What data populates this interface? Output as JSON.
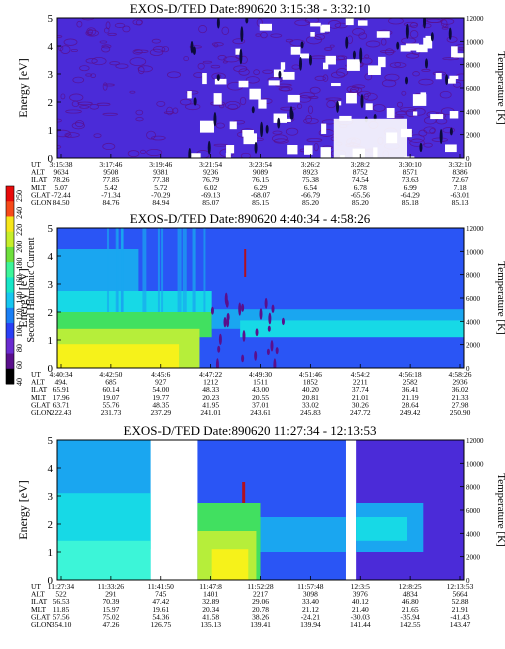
{
  "colors": {
    "purple": "#5a0f8c",
    "indigo": "#4b2bd8",
    "blue": "#2a55f5",
    "sky": "#1aa6f0",
    "cyan": "#17d9e6",
    "aqua": "#3cf5d8",
    "green": "#41e060",
    "yellowgreen": "#b6ee3a",
    "yellow": "#f6f21a",
    "white": "#ffffff",
    "dark": "#0b0b3a"
  },
  "colorbar": {
    "label": "Second Harmonic Current",
    "ticks": [
      "40",
      "60",
      "80",
      "100",
      "120",
      "140",
      "160",
      "180",
      "200",
      "220",
      "240",
      "250"
    ]
  },
  "chart_data": [
    {
      "type": "heatmap",
      "title": "EXOS-D/TED  Date:890620  3:15:38 - 3:32:10",
      "ylabel": "Energy [eV]",
      "y2label": "Temperature [K]",
      "ylim": [
        0,
        5
      ],
      "y2lim": [
        0,
        12000
      ],
      "yticks": [
        "0",
        "1",
        "2",
        "3",
        "4",
        "5"
      ],
      "y2ticks": [
        "0",
        "2000",
        "4000",
        "6000",
        "8000",
        "10000",
        "12000"
      ],
      "table_labels": [
        "UT",
        "ALT",
        "ILAT",
        "MLT",
        "GLAT",
        "GLON"
      ],
      "columns": [
        [
          "3:15:38",
          "9634",
          "78.26",
          "5.07",
          "-72.44",
          "84.50"
        ],
        [
          "3:17:46",
          "9508",
          "77.85",
          "5.42",
          "-71.34",
          "84.76"
        ],
        [
          "3:19:46",
          "9381",
          "77.38",
          "5.72",
          "-70.29",
          "84.94"
        ],
        [
          "3:21:54",
          "9236",
          "76.79",
          "6.02",
          "-69.13",
          "85.07"
        ],
        [
          "3:23:54",
          "9089",
          "76.15",
          "6.29",
          "-68.07",
          "85.15"
        ],
        [
          "3:26:2",
          "8923",
          "75.38",
          "6.54",
          "-66.79",
          "85.20"
        ],
        [
          "3:28:2",
          "8752",
          "74.54",
          "6.78",
          "-65.56",
          "85.20"
        ],
        [
          "3:30:10",
          "8571",
          "73.63",
          "6.99",
          "-64.29",
          "85.18"
        ],
        [
          "3:32:10",
          "8386",
          "72.67",
          "7.18",
          "-63.01",
          "85.13"
        ]
      ]
    },
    {
      "type": "heatmap",
      "title": "EXOS-D/TED  Date:890620  4:40:34 - 4:58:26",
      "ylabel": "Energy [eV]",
      "y2label": "Temperature [K]",
      "ylim": [
        0,
        5
      ],
      "y2lim": [
        0,
        12000
      ],
      "yticks": [
        "0",
        "1",
        "2",
        "3",
        "4",
        "5"
      ],
      "y2ticks": [
        "0",
        "2000",
        "4000",
        "6000",
        "8000",
        "10000",
        "12000"
      ],
      "table_labels": [
        "UT",
        "ALT",
        "ILAT",
        "MLT",
        "GLAT",
        "GLON"
      ],
      "columns": [
        [
          "4:40:34",
          "494.",
          "65.91",
          "17.96",
          "63.71",
          "222.43"
        ],
        [
          "4:42:50",
          "685",
          "60.14",
          "19.07",
          "55.76",
          "231.73"
        ],
        [
          "4:45:6",
          "927",
          "54.00",
          "19.77",
          "48.35",
          "237.29"
        ],
        [
          "4:47:22",
          "1212",
          "48.33",
          "20.23",
          "41.95",
          "241.01"
        ],
        [
          "4:49:30",
          "1511",
          "43.00",
          "20.55",
          "37.01",
          "243.61"
        ],
        [
          "4:51:46",
          "1852",
          "40.20",
          "20.81",
          "33.02",
          "245.83"
        ],
        [
          "4:54:2",
          "2211",
          "37.74",
          "21.01",
          "30.26",
          "247.72"
        ],
        [
          "4:56:18",
          "2582",
          "36.41",
          "21.19",
          "28.64",
          "249.42"
        ],
        [
          "4:58:26",
          "2936",
          "36.02",
          "21.33",
          "27.98",
          "250.90"
        ]
      ]
    },
    {
      "type": "heatmap",
      "title": "EXOS-D/TED  Date:890620  11:27:34 - 12:13:53",
      "ylabel": "Energy [eV]",
      "y2label": "Temperature [K]",
      "ylim": [
        0,
        5
      ],
      "y2lim": [
        0,
        12000
      ],
      "yticks": [
        "0",
        "1",
        "2",
        "3",
        "4",
        "5"
      ],
      "y2ticks": [
        "0",
        "2000",
        "4000",
        "6000",
        "8000",
        "10000",
        "12000"
      ],
      "table_labels": [
        "UT",
        "ALT",
        "ILAT",
        "MLT",
        "GLAT",
        "GLON"
      ],
      "columns": [
        [
          "11:27:34",
          "522",
          "56.53",
          "11.85",
          "57.56",
          "354.10"
        ],
        [
          "11:33:26",
          "291",
          "70.39",
          "15.97",
          "75.02",
          "47.26"
        ],
        [
          "11:41:50",
          "745",
          "47.42",
          "19.61",
          "54.36",
          "126.75"
        ],
        [
          "11:47:8",
          "1401",
          "32.89",
          "20.34",
          "41.58",
          "135.13"
        ],
        [
          "11:52:28",
          "2217",
          "29.06",
          "20.78",
          "38.26",
          "139.41"
        ],
        [
          "11:57:48",
          "3098",
          "33.40",
          "21.12",
          "-24.21",
          "139.94"
        ],
        [
          "12:3:5",
          "3976",
          "40.12",
          "21.40",
          "-30.03",
          "141.44"
        ],
        [
          "12:8:25",
          "4834",
          "46.80",
          "21.65",
          "-35.94",
          "142.55"
        ],
        [
          "12:13:53",
          "5664",
          "52.88",
          "21.91",
          "-41.43",
          "143.47"
        ]
      ],
      "data_gaps": [
        [
          "11:33:26",
          "11:41:50"
        ],
        [
          "11:57:48",
          "12:3:5"
        ]
      ]
    }
  ]
}
